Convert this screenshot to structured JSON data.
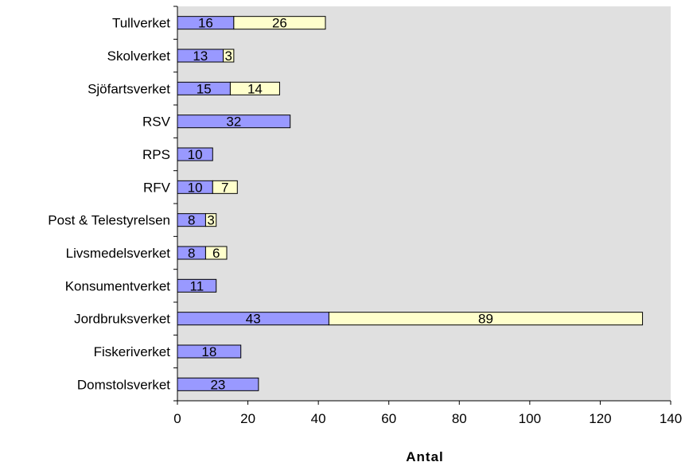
{
  "chart_data": {
    "type": "bar",
    "orientation": "horizontal",
    "stacked": true,
    "categories": [
      "Domstolsverket",
      "Fiskeriverket",
      "Jordbruksverket",
      "Konsumentverket",
      "Livsmedelsverket",
      "Post & Telestyrelsen",
      "RFV",
      "RPS",
      "RSV",
      "Sjöfartsverket",
      "Skolverket",
      "Tullverket"
    ],
    "series": [
      {
        "color": "#9999ff",
        "values": [
          23,
          18,
          43,
          11,
          8,
          8,
          10,
          10,
          32,
          15,
          13,
          16
        ],
        "labels": [
          "23",
          "18",
          "43",
          "11",
          "8",
          "8",
          "10",
          "10",
          "32",
          "15",
          "13",
          "16"
        ]
      },
      {
        "color": "#ffffcc",
        "values": [
          0,
          0,
          89,
          0,
          6,
          3,
          7,
          0,
          0,
          14,
          3,
          26
        ],
        "labels": [
          "",
          "",
          "89",
          "",
          "6",
          "3",
          "7",
          "",
          "",
          "14",
          "3",
          "26"
        ]
      }
    ],
    "xlabel": "Antal",
    "xlim": [
      0,
      140
    ],
    "xticks": [
      "0",
      "20",
      "40",
      "60",
      "80",
      "100",
      "120",
      "140"
    ],
    "plot_background": "#e0e0e0",
    "grid": false,
    "legend": "none"
  }
}
